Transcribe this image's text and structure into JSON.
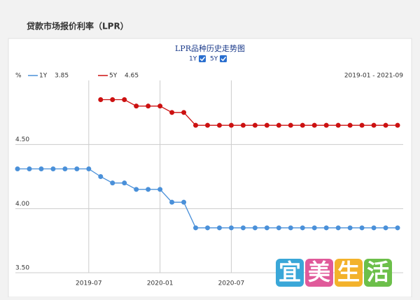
{
  "header": {
    "title": "贷款市场报价利率（LPR）"
  },
  "watermark": "宜美生活",
  "chart_data": {
    "type": "line",
    "title": "LPR品种历史走势图",
    "y_unit": "%",
    "range": "2019-01 - 2021-09",
    "categories": [
      null,
      null,
      null,
      null,
      null,
      null,
      "2019-07",
      null,
      null,
      null,
      null,
      null,
      "2020-01",
      null,
      null,
      null,
      null,
      null,
      "2020-07",
      null,
      null,
      null,
      null,
      null,
      null,
      null,
      null,
      null,
      null,
      null,
      null,
      null,
      null
    ],
    "series": [
      {
        "name": "1Y",
        "legend_value": "3.85",
        "color": "#4a90d9",
        "values": [
          4.31,
          4.31,
          4.31,
          4.31,
          4.31,
          4.31,
          4.31,
          4.25,
          4.2,
          4.2,
          4.15,
          4.15,
          4.15,
          4.05,
          4.05,
          3.85,
          3.85,
          3.85,
          3.85,
          3.85,
          3.85,
          3.85,
          3.85,
          3.85,
          3.85,
          3.85,
          3.85,
          3.85,
          3.85,
          3.85,
          3.85,
          3.85,
          3.85
        ]
      },
      {
        "name": "5Y",
        "legend_value": "4.65",
        "color": "#cc1111",
        "values": [
          null,
          null,
          null,
          null,
          null,
          null,
          null,
          4.85,
          4.85,
          4.85,
          4.8,
          4.8,
          4.8,
          4.75,
          4.75,
          4.65,
          4.65,
          4.65,
          4.65,
          4.65,
          4.65,
          4.65,
          4.65,
          4.65,
          4.65,
          4.65,
          4.65,
          4.65,
          4.65,
          4.65,
          4.65,
          4.65,
          4.65
        ]
      }
    ],
    "ylim": [
      3.5,
      5.0
    ],
    "yticks": [
      {
        "value": 3.5,
        "label": "3.50"
      },
      {
        "value": 4.0,
        "label": "4.00"
      },
      {
        "value": 4.5,
        "label": "4.50"
      }
    ],
    "grid": true
  }
}
